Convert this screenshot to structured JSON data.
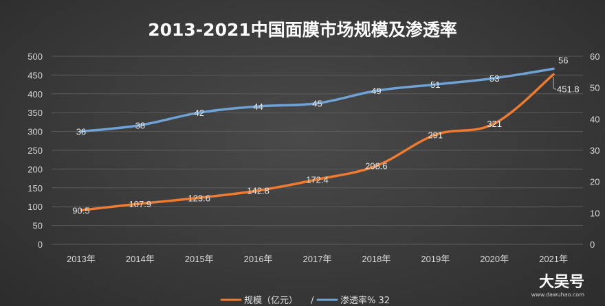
{
  "chart_data": {
    "type": "line",
    "title": "2013-2021中国面膜市场规模及渗透率",
    "categories": [
      "2013年",
      "2014年",
      "2015年",
      "2016年",
      "2017年",
      "2018年",
      "2019年",
      "2020年",
      "2021年"
    ],
    "series": [
      {
        "name": "规模（亿元）",
        "axis": "left",
        "color": "#ee7b30",
        "values": [
          90.5,
          107.9,
          123.6,
          142.8,
          172.4,
          208.6,
          291,
          321,
          451.8
        ],
        "labels": [
          "90.5",
          "107.9",
          "123.6",
          "142.8",
          "172.4",
          "208.6",
          "291",
          "321",
          "451.8"
        ]
      },
      {
        "name": "渗透率% 32",
        "axis": "right",
        "color": "#6fa3d6",
        "values": [
          36,
          38,
          42,
          44,
          45,
          49,
          51,
          53,
          56
        ],
        "labels": [
          "36",
          "38",
          "42",
          "44",
          "45",
          "49",
          "51",
          "53",
          "56"
        ]
      }
    ],
    "y_left": {
      "min": 0,
      "max": 500,
      "ticks": [
        "0",
        "50",
        "100",
        "150",
        "200",
        "250",
        "300",
        "350",
        "400",
        "450",
        "500"
      ]
    },
    "y_right": {
      "min": 0,
      "max": 60,
      "ticks": [
        "0",
        "10",
        "20",
        "30",
        "40",
        "50",
        "60"
      ]
    },
    "grid": true,
    "legend": {
      "position": "bottom",
      "separator": "/"
    }
  },
  "watermark": {
    "main": "大吴号",
    "sub": "www.dawuhao.com"
  }
}
